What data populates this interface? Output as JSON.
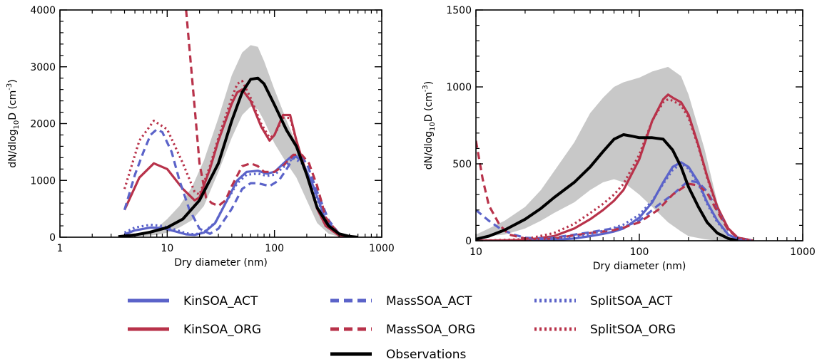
{
  "colors": {
    "ACT": "#5b63c9",
    "ORG": "#b8324a",
    "OBS": "#000000",
    "band": "#c8c8c8"
  },
  "chart_data": [
    {
      "type": "line",
      "xscale": "log",
      "xlim": [
        1,
        1000
      ],
      "ylim": [
        0,
        4000
      ],
      "xlabel": "Dry diameter (nm)",
      "ylabel": "dN/dlog10D (cm-3)",
      "ylabel_parts": {
        "a": "dN/dlog",
        "sub": "10",
        "b": "D (cm",
        "sup": "-3",
        "c": ")"
      },
      "xticks": [
        1,
        10,
        100,
        1000
      ],
      "xtick_labels": [
        "1",
        "10",
        "100",
        "1000"
      ],
      "yticks": [
        0,
        1000,
        2000,
        3000,
        4000
      ],
      "ytick_labels": [
        "0",
        "1000",
        "2000",
        "3000",
        "4000"
      ],
      "band": {
        "x": [
          4,
          6,
          8,
          10,
          13,
          17,
          22,
          30,
          40,
          50,
          60,
          70,
          80,
          100,
          130,
          160,
          200,
          250,
          320,
          400,
          500,
          600
        ],
        "lower": [
          5,
          20,
          40,
          80,
          170,
          300,
          550,
          1150,
          1750,
          2150,
          2300,
          2250,
          2050,
          1650,
          1300,
          1050,
          650,
          250,
          60,
          10,
          0,
          0
        ],
        "upper": [
          30,
          80,
          160,
          320,
          550,
          880,
          1350,
          2100,
          2850,
          3250,
          3380,
          3350,
          3100,
          2600,
          2050,
          1650,
          1100,
          500,
          130,
          30,
          5,
          0
        ]
      },
      "series": [
        {
          "name": "Observations",
          "group": "OBS",
          "dash": "solid",
          "x": [
            3.5,
            5,
            7,
            10,
            14,
            20,
            30,
            40,
            50,
            60,
            70,
            80,
            100,
            130,
            160,
            200,
            250,
            320,
            400,
            500,
            600
          ],
          "y": [
            10,
            40,
            90,
            170,
            320,
            650,
            1300,
            2050,
            2550,
            2780,
            2800,
            2700,
            2330,
            1880,
            1600,
            1100,
            520,
            200,
            60,
            15,
            0
          ]
        },
        {
          "name": "KinSOA_ACT",
          "group": "ACT",
          "dash": "solid",
          "x": [
            4,
            5,
            7,
            9,
            12,
            15,
            18,
            22,
            28,
            35,
            45,
            55,
            70,
            85,
            100,
            130,
            150,
            180,
            230,
            300,
            400,
            500,
            600
          ],
          "y": [
            50,
            120,
            170,
            160,
            100,
            50,
            40,
            80,
            250,
            600,
            1000,
            1150,
            1170,
            1120,
            1150,
            1350,
            1450,
            1350,
            900,
            300,
            60,
            10,
            0
          ]
        },
        {
          "name": "KinSOA_ORG",
          "group": "ORG",
          "dash": "solid",
          "x": [
            4,
            5.5,
            7.5,
            10,
            14,
            18,
            20,
            25,
            30,
            40,
            45,
            50,
            60,
            75,
            90,
            100,
            120,
            140,
            160,
            200,
            250,
            300,
            400,
            500
          ],
          "y": [
            480,
            1050,
            1300,
            1200,
            850,
            650,
            700,
            1200,
            1700,
            2350,
            2550,
            2600,
            2400,
            1950,
            1700,
            1800,
            2150,
            2150,
            1700,
            1100,
            500,
            200,
            30,
            0
          ]
        },
        {
          "name": "MassSOA_ACT",
          "group": "ACT",
          "dash": "dash",
          "x": [
            4,
            5,
            6,
            7,
            8,
            9,
            11,
            13,
            16,
            20,
            25,
            30,
            40,
            50,
            60,
            70,
            90,
            110,
            130,
            150,
            170,
            200,
            250,
            320,
            400,
            500
          ],
          "y": [
            480,
            1100,
            1500,
            1800,
            1900,
            1850,
            1500,
            1000,
            500,
            150,
            60,
            150,
            500,
            850,
            950,
            950,
            900,
            1000,
            1200,
            1400,
            1450,
            1300,
            800,
            300,
            60,
            0
          ]
        },
        {
          "name": "MassSOA_ORG",
          "group": "ORG",
          "dash": "dash",
          "x": [
            15,
            16,
            18,
            20,
            23,
            26,
            30,
            35,
            40,
            50,
            60,
            70,
            80,
            100,
            120,
            150,
            180,
            210,
            250,
            300,
            400,
            500
          ],
          "y": [
            4000,
            3400,
            2300,
            1300,
            700,
            600,
            550,
            650,
            900,
            1250,
            1300,
            1250,
            1150,
            1150,
            1250,
            1450,
            1450,
            1300,
            900,
            350,
            50,
            0
          ]
        },
        {
          "name": "SplitSOA_ACT",
          "group": "ACT",
          "dash": "dot",
          "x": [
            4,
            5,
            7,
            9,
            12,
            15,
            18,
            22,
            28,
            35,
            45,
            55,
            70,
            85,
            100,
            130,
            150,
            180,
            230,
            300,
            400,
            500,
            600
          ],
          "y": [
            80,
            170,
            220,
            200,
            130,
            70,
            50,
            90,
            260,
            600,
            950,
            1100,
            1120,
            1080,
            1100,
            1280,
            1400,
            1300,
            850,
            280,
            55,
            10,
            0
          ]
        },
        {
          "name": "SplitSOA_ORG",
          "group": "ORG",
          "dash": "dot",
          "x": [
            4,
            5.5,
            7.5,
            10,
            14,
            18,
            20,
            25,
            30,
            40,
            45,
            50,
            60,
            75,
            90,
            100,
            120,
            140,
            160,
            200,
            250,
            300,
            400,
            500
          ],
          "y": [
            850,
            1700,
            2050,
            1900,
            1300,
            800,
            750,
            1250,
            1750,
            2450,
            2700,
            2750,
            2450,
            2000,
            1750,
            1800,
            2100,
            2100,
            1700,
            1100,
            500,
            200,
            30,
            0
          ]
        }
      ]
    },
    {
      "type": "line",
      "xscale": "log",
      "xlim": [
        10,
        1000
      ],
      "ylim": [
        0,
        1500
      ],
      "xlabel": "Dry diameter (nm)",
      "ylabel": "dN/dlog10D (cm-3)",
      "ylabel_parts": {
        "a": "dN/dlog",
        "sub": "10",
        "b": "D (cm",
        "sup": "-3",
        "c": ")"
      },
      "xticks": [
        10,
        100,
        1000
      ],
      "xtick_labels": [
        "10",
        "100",
        "1000"
      ],
      "yticks": [
        0,
        500,
        1000,
        1500
      ],
      "ytick_labels": [
        "0",
        "500",
        "1000",
        "1500"
      ],
      "band": {
        "x": [
          10,
          12,
          15,
          20,
          25,
          30,
          40,
          50,
          60,
          70,
          80,
          100,
          120,
          150,
          180,
          200,
          250,
          300,
          350
        ],
        "lower": [
          20,
          30,
          40,
          80,
          130,
          180,
          250,
          330,
          380,
          400,
          380,
          300,
          220,
          120,
          60,
          30,
          10,
          0,
          0
        ],
        "upper": [
          40,
          80,
          130,
          220,
          330,
          450,
          640,
          830,
          930,
          1000,
          1030,
          1060,
          1100,
          1130,
          1070,
          950,
          600,
          250,
          60
        ]
      },
      "series": [
        {
          "name": "Observations",
          "group": "OBS",
          "dash": "solid",
          "x": [
            10,
            12,
            15,
            20,
            25,
            30,
            40,
            50,
            60,
            70,
            80,
            90,
            100,
            120,
            140,
            160,
            180,
            200,
            230,
            260,
            300,
            350,
            400
          ],
          "y": [
            10,
            30,
            70,
            140,
            210,
            280,
            380,
            480,
            580,
            660,
            690,
            680,
            670,
            670,
            660,
            590,
            480,
            350,
            220,
            120,
            50,
            15,
            0
          ]
        },
        {
          "name": "KinSOA_ACT",
          "group": "ACT",
          "dash": "solid",
          "x": [
            10,
            20,
            30,
            40,
            50,
            60,
            70,
            80,
            100,
            120,
            140,
            160,
            180,
            200,
            230,
            260,
            300,
            350,
            400,
            500
          ],
          "y": [
            0,
            0,
            5,
            15,
            30,
            45,
            60,
            80,
            150,
            250,
            380,
            480,
            510,
            480,
            380,
            250,
            130,
            40,
            10,
            0
          ]
        },
        {
          "name": "KinSOA_ORG",
          "group": "ORG",
          "dash": "solid",
          "x": [
            10,
            20,
            30,
            40,
            50,
            60,
            70,
            80,
            100,
            120,
            140,
            150,
            160,
            180,
            200,
            230,
            260,
            300,
            350,
            400,
            500
          ],
          "y": [
            0,
            5,
            30,
            80,
            140,
            200,
            260,
            330,
            530,
            780,
            920,
            950,
            930,
            900,
            820,
            620,
            420,
            220,
            80,
            20,
            0
          ]
        },
        {
          "name": "MassSOA_ACT",
          "group": "ACT",
          "dash": "dash",
          "x": [
            10,
            12,
            14,
            17,
            20,
            25,
            30,
            40,
            50,
            60,
            70,
            80,
            100,
            130,
            160,
            200,
            230,
            260,
            300,
            350,
            400,
            500
          ],
          "y": [
            200,
            130,
            80,
            40,
            20,
            15,
            20,
            40,
            55,
            70,
            80,
            90,
            130,
            230,
            300,
            390,
            380,
            320,
            200,
            70,
            20,
            0
          ]
        },
        {
          "name": "MassSOA_ORG",
          "group": "ORG",
          "dash": "dash",
          "x": [
            10,
            11,
            12,
            14,
            16,
            20,
            25,
            30,
            40,
            50,
            60,
            70,
            80,
            100,
            130,
            160,
            200,
            230,
            260,
            300,
            350,
            400,
            500
          ],
          "y": [
            650,
            400,
            230,
            100,
            40,
            15,
            10,
            15,
            35,
            50,
            60,
            70,
            85,
            120,
            200,
            300,
            370,
            360,
            310,
            190,
            70,
            20,
            0
          ]
        },
        {
          "name": "SplitSOA_ACT",
          "group": "ACT",
          "dash": "dot",
          "x": [
            10,
            20,
            30,
            40,
            50,
            60,
            70,
            80,
            100,
            120,
            140,
            160,
            180,
            200,
            230,
            260,
            300,
            350,
            400,
            500
          ],
          "y": [
            0,
            2,
            10,
            25,
            45,
            65,
            85,
            105,
            170,
            260,
            370,
            460,
            500,
            470,
            370,
            240,
            120,
            40,
            10,
            0
          ]
        },
        {
          "name": "SplitSOA_ORG",
          "group": "ORG",
          "dash": "dot",
          "x": [
            10,
            20,
            30,
            40,
            50,
            60,
            70,
            80,
            100,
            120,
            140,
            150,
            160,
            180,
            200,
            230,
            260,
            300,
            350,
            400,
            500
          ],
          "y": [
            0,
            10,
            50,
            110,
            180,
            240,
            300,
            370,
            560,
            780,
            900,
            920,
            910,
            880,
            800,
            610,
            410,
            210,
            75,
            20,
            0
          ]
        }
      ]
    }
  ],
  "legend": [
    {
      "name": "KinSOA_ACT",
      "group": "ACT",
      "dash": "solid"
    },
    {
      "name": "KinSOA_ORG",
      "group": "ORG",
      "dash": "solid"
    },
    {
      "name": "MassSOA_ACT",
      "group": "ACT",
      "dash": "dash"
    },
    {
      "name": "MassSOA_ORG",
      "group": "ORG",
      "dash": "dash"
    },
    {
      "name": "SplitSOA_ACT",
      "group": "ACT",
      "dash": "dot"
    },
    {
      "name": "SplitSOA_ORG",
      "group": "ORG",
      "dash": "dot"
    },
    {
      "name": "Observations",
      "group": "OBS",
      "dash": "solid"
    }
  ]
}
